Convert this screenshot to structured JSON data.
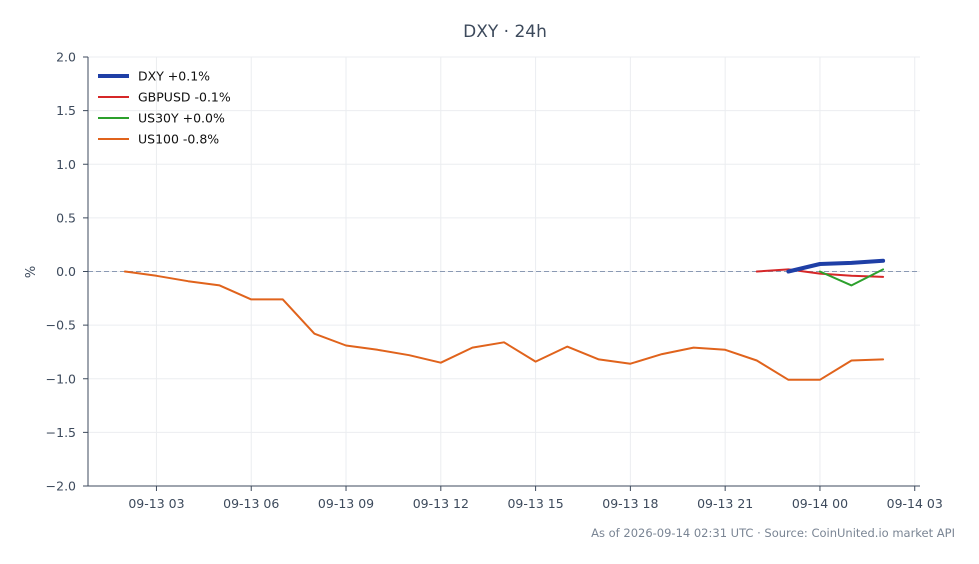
{
  "chart_data": {
    "type": "line",
    "title": "DXY · 24h",
    "ylabel": "%",
    "xlabel": "",
    "ylim": [
      -2.0,
      2.0
    ],
    "yticks": [
      2.0,
      1.5,
      1.0,
      0.5,
      0.0,
      -0.5,
      -1.0,
      -1.5,
      -2.0
    ],
    "ytick_labels": [
      "2.0",
      "1.5",
      "1.0",
      "0.5",
      "0.0",
      "−0.5",
      "−1.0",
      "−1.5",
      "−2.0"
    ],
    "xlim": [
      "2026-09-13 00:50",
      "2026-09-14 03:10"
    ],
    "xticks": [
      "2026-09-13 03:00",
      "2026-09-13 06:00",
      "2026-09-13 09:00",
      "2026-09-13 12:00",
      "2026-09-13 15:00",
      "2026-09-13 18:00",
      "2026-09-13 21:00",
      "2026-09-14 00:00",
      "2026-09-14 03:00"
    ],
    "xtick_labels": [
      "09-13 03",
      "09-13 06",
      "09-13 09",
      "09-13 12",
      "09-13 15",
      "09-13 18",
      "09-13 21",
      "09-14 00",
      "09-14 03"
    ],
    "grid": true,
    "reference_line": {
      "y": 0.0,
      "style": "dashed"
    },
    "legend_position": "top-left",
    "series": [
      {
        "name": "DXY +0.1%",
        "color": "#1f3fa6",
        "x": [
          "2026-09-13 23:00",
          "2026-09-14 00:00",
          "2026-09-14 01:00",
          "2026-09-14 02:00"
        ],
        "values": [
          0.0,
          0.07,
          0.08,
          0.1
        ]
      },
      {
        "name": "GBPUSD -0.1%",
        "color": "#d62728",
        "x": [
          "2026-09-13 22:00",
          "2026-09-13 23:00",
          "2026-09-14 00:00",
          "2026-09-14 01:00",
          "2026-09-14 02:00"
        ],
        "values": [
          0.0,
          0.02,
          -0.02,
          -0.04,
          -0.05
        ]
      },
      {
        "name": "US30Y +0.0%",
        "color": "#2ca02c",
        "x": [
          "2026-09-14 00:00",
          "2026-09-14 01:00",
          "2026-09-14 02:00"
        ],
        "values": [
          0.0,
          -0.13,
          0.02
        ]
      },
      {
        "name": "US100 -0.8%",
        "color": "#e0631c",
        "x": [
          "2026-09-13 02:00",
          "2026-09-13 03:00",
          "2026-09-13 04:00",
          "2026-09-13 05:00",
          "2026-09-13 06:00",
          "2026-09-13 07:00",
          "2026-09-13 08:00",
          "2026-09-13 09:00",
          "2026-09-13 10:00",
          "2026-09-13 11:00",
          "2026-09-13 12:00",
          "2026-09-13 13:00",
          "2026-09-13 14:00",
          "2026-09-13 15:00",
          "2026-09-13 16:00",
          "2026-09-13 17:00",
          "2026-09-13 18:00",
          "2026-09-13 19:00",
          "2026-09-13 20:00",
          "2026-09-13 21:00",
          "2026-09-13 22:00",
          "2026-09-13 23:00",
          "2026-09-14 00:00",
          "2026-09-14 01:00",
          "2026-09-14 02:00"
        ],
        "values": [
          0.0,
          -0.04,
          -0.09,
          -0.13,
          -0.26,
          -0.26,
          -0.58,
          -0.69,
          -0.73,
          -0.78,
          -0.85,
          -0.71,
          -0.66,
          -0.84,
          -0.7,
          -0.82,
          -0.86,
          -0.77,
          -0.71,
          -0.73,
          -0.83,
          -1.01,
          -1.01,
          -0.83,
          -0.82
        ]
      }
    ],
    "footer": "As of 2026-09-14 02:31 UTC · Source: CoinUnited.io market API"
  }
}
